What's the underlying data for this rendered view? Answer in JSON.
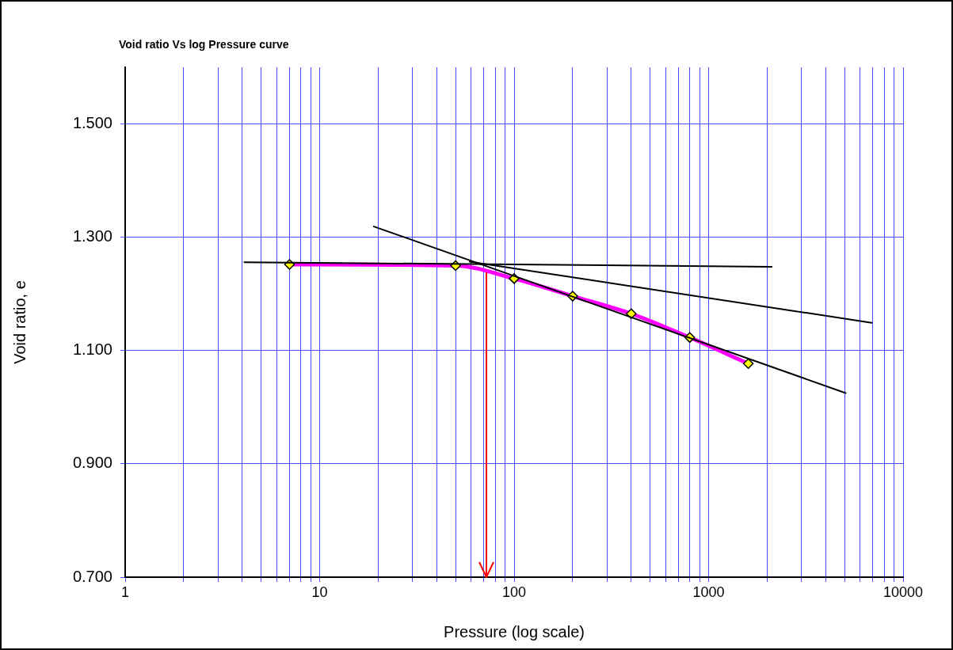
{
  "chart_data": {
    "type": "line",
    "title": "Void ratio Vs log Pressure curve",
    "xlabel": "Pressure (log scale)",
    "ylabel": "Void ratio, e",
    "log": "x",
    "grid": true,
    "legend": false,
    "marker": "diamond",
    "ref_lines": [
      {
        "axis": "x",
        "value": 72,
        "color": "#ff0000"
      }
    ],
    "xlim": [
      1,
      10000
    ],
    "ylim": [
      0.7,
      1.6
    ],
    "xticks": [
      1,
      {
        "value": 2,
        "label": null
      },
      {
        "value": 3,
        "label": null
      },
      {
        "value": 4,
        "label": null
      },
      {
        "value": 5,
        "label": null
      },
      {
        "value": 6,
        "label": null
      },
      {
        "value": 7,
        "label": null
      },
      {
        "value": 8,
        "label": null
      },
      {
        "value": 9,
        "label": null
      },
      10,
      {
        "value": 20,
        "label": null
      },
      {
        "value": 30,
        "label": null
      },
      {
        "value": 40,
        "label": null
      },
      {
        "value": 50,
        "label": null
      },
      {
        "value": 60,
        "label": null
      },
      {
        "value": 70,
        "label": null
      },
      {
        "value": 80,
        "label": null
      },
      {
        "value": 90,
        "label": null
      },
      100,
      {
        "value": 200,
        "label": null
      },
      {
        "value": 300,
        "label": null
      },
      {
        "value": 400,
        "label": null
      },
      {
        "value": 500,
        "label": null
      },
      {
        "value": 600,
        "label": null
      },
      {
        "value": 700,
        "label": null
      },
      {
        "value": 800,
        "label": null
      },
      {
        "value": 900,
        "label": null
      },
      1000,
      {
        "value": 2000,
        "label": null
      },
      {
        "value": 3000,
        "label": null
      },
      {
        "value": 4000,
        "label": null
      },
      {
        "value": 5000,
        "label": null
      },
      {
        "value": 6000,
        "label": null
      },
      {
        "value": 7000,
        "label": null
      },
      {
        "value": 8000,
        "label": null
      },
      {
        "value": 9000,
        "label": null
      },
      10000
    ],
    "yticks": [
      {
        "value": 0.7,
        "label": "0.700"
      },
      {
        "value": 0.9,
        "label": "0.900"
      },
      {
        "value": 1.1,
        "label": "1.100"
      },
      {
        "value": 1.3,
        "label": "1.300"
      },
      {
        "value": 1.5,
        "label": "1.500"
      }
    ],
    "series": [
      {
        "color": "#ff00ff",
        "x": [
          7,
          50,
          100,
          200,
          400,
          800,
          1600
        ],
        "values": [
          1.252,
          1.25,
          1.227,
          1.196,
          1.165,
          1.123,
          1.077
        ]
      },
      {
        "color": "#000000",
        "marker": "none",
        "x": [
          4.1,
          2110
        ],
        "values": [
          1.256,
          1.248
        ]
      },
      {
        "color": "#000000",
        "marker": "none",
        "x": [
          19,
          5070
        ],
        "values": [
          1.319,
          1.025
        ]
      },
      {
        "color": "#000000",
        "marker": "none",
        "x": [
          59,
          6900
        ],
        "values": [
          1.257,
          1.149
        ]
      }
    ]
  }
}
